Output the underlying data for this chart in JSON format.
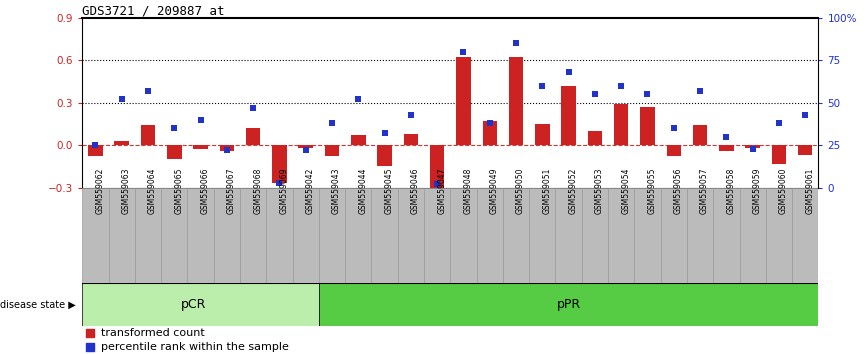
{
  "title": "GDS3721 / 209887_at",
  "samples": [
    "GSM559062",
    "GSM559063",
    "GSM559064",
    "GSM559065",
    "GSM559066",
    "GSM559067",
    "GSM559068",
    "GSM559069",
    "GSM559042",
    "GSM559043",
    "GSM559044",
    "GSM559045",
    "GSM559046",
    "GSM559047",
    "GSM559048",
    "GSM559049",
    "GSM559050",
    "GSM559051",
    "GSM559052",
    "GSM559053",
    "GSM559054",
    "GSM559055",
    "GSM559056",
    "GSM559057",
    "GSM559058",
    "GSM559059",
    "GSM559060",
    "GSM559061"
  ],
  "transformed_count": [
    -0.08,
    0.03,
    0.14,
    -0.1,
    -0.03,
    -0.04,
    0.12,
    -0.27,
    -0.02,
    -0.08,
    0.07,
    -0.15,
    0.08,
    -0.32,
    0.62,
    0.17,
    0.62,
    0.15,
    0.42,
    0.1,
    0.29,
    0.27,
    -0.08,
    0.14,
    -0.04,
    -0.02,
    -0.13,
    -0.07
  ],
  "percentile_rank": [
    25,
    52,
    57,
    35,
    40,
    22,
    47,
    3,
    22,
    38,
    52,
    32,
    43,
    2,
    80,
    38,
    85,
    60,
    68,
    55,
    60,
    55,
    35,
    57,
    30,
    23,
    38,
    43
  ],
  "pcr_count": 9,
  "ppr_count": 19,
  "bar_color": "#cc2222",
  "dot_color": "#2233cc",
  "left_ylim": [
    -0.3,
    0.9
  ],
  "right_ylim": [
    0,
    100
  ],
  "left_yticks": [
    -0.3,
    0.0,
    0.3,
    0.6,
    0.9
  ],
  "right_yticks": [
    0,
    25,
    50,
    75,
    100
  ],
  "right_yticklabels": [
    "0",
    "25",
    "50",
    "75",
    "100%"
  ],
  "dotted_lines": [
    0.3,
    0.6
  ],
  "pcr_color": "#bbeeaa",
  "ppr_color": "#55cc44",
  "bg_color": "#bbbbbb",
  "legend_items": [
    "transformed count",
    "percentile rank within the sample"
  ],
  "legend_colors": [
    "#cc2222",
    "#2233cc"
  ]
}
